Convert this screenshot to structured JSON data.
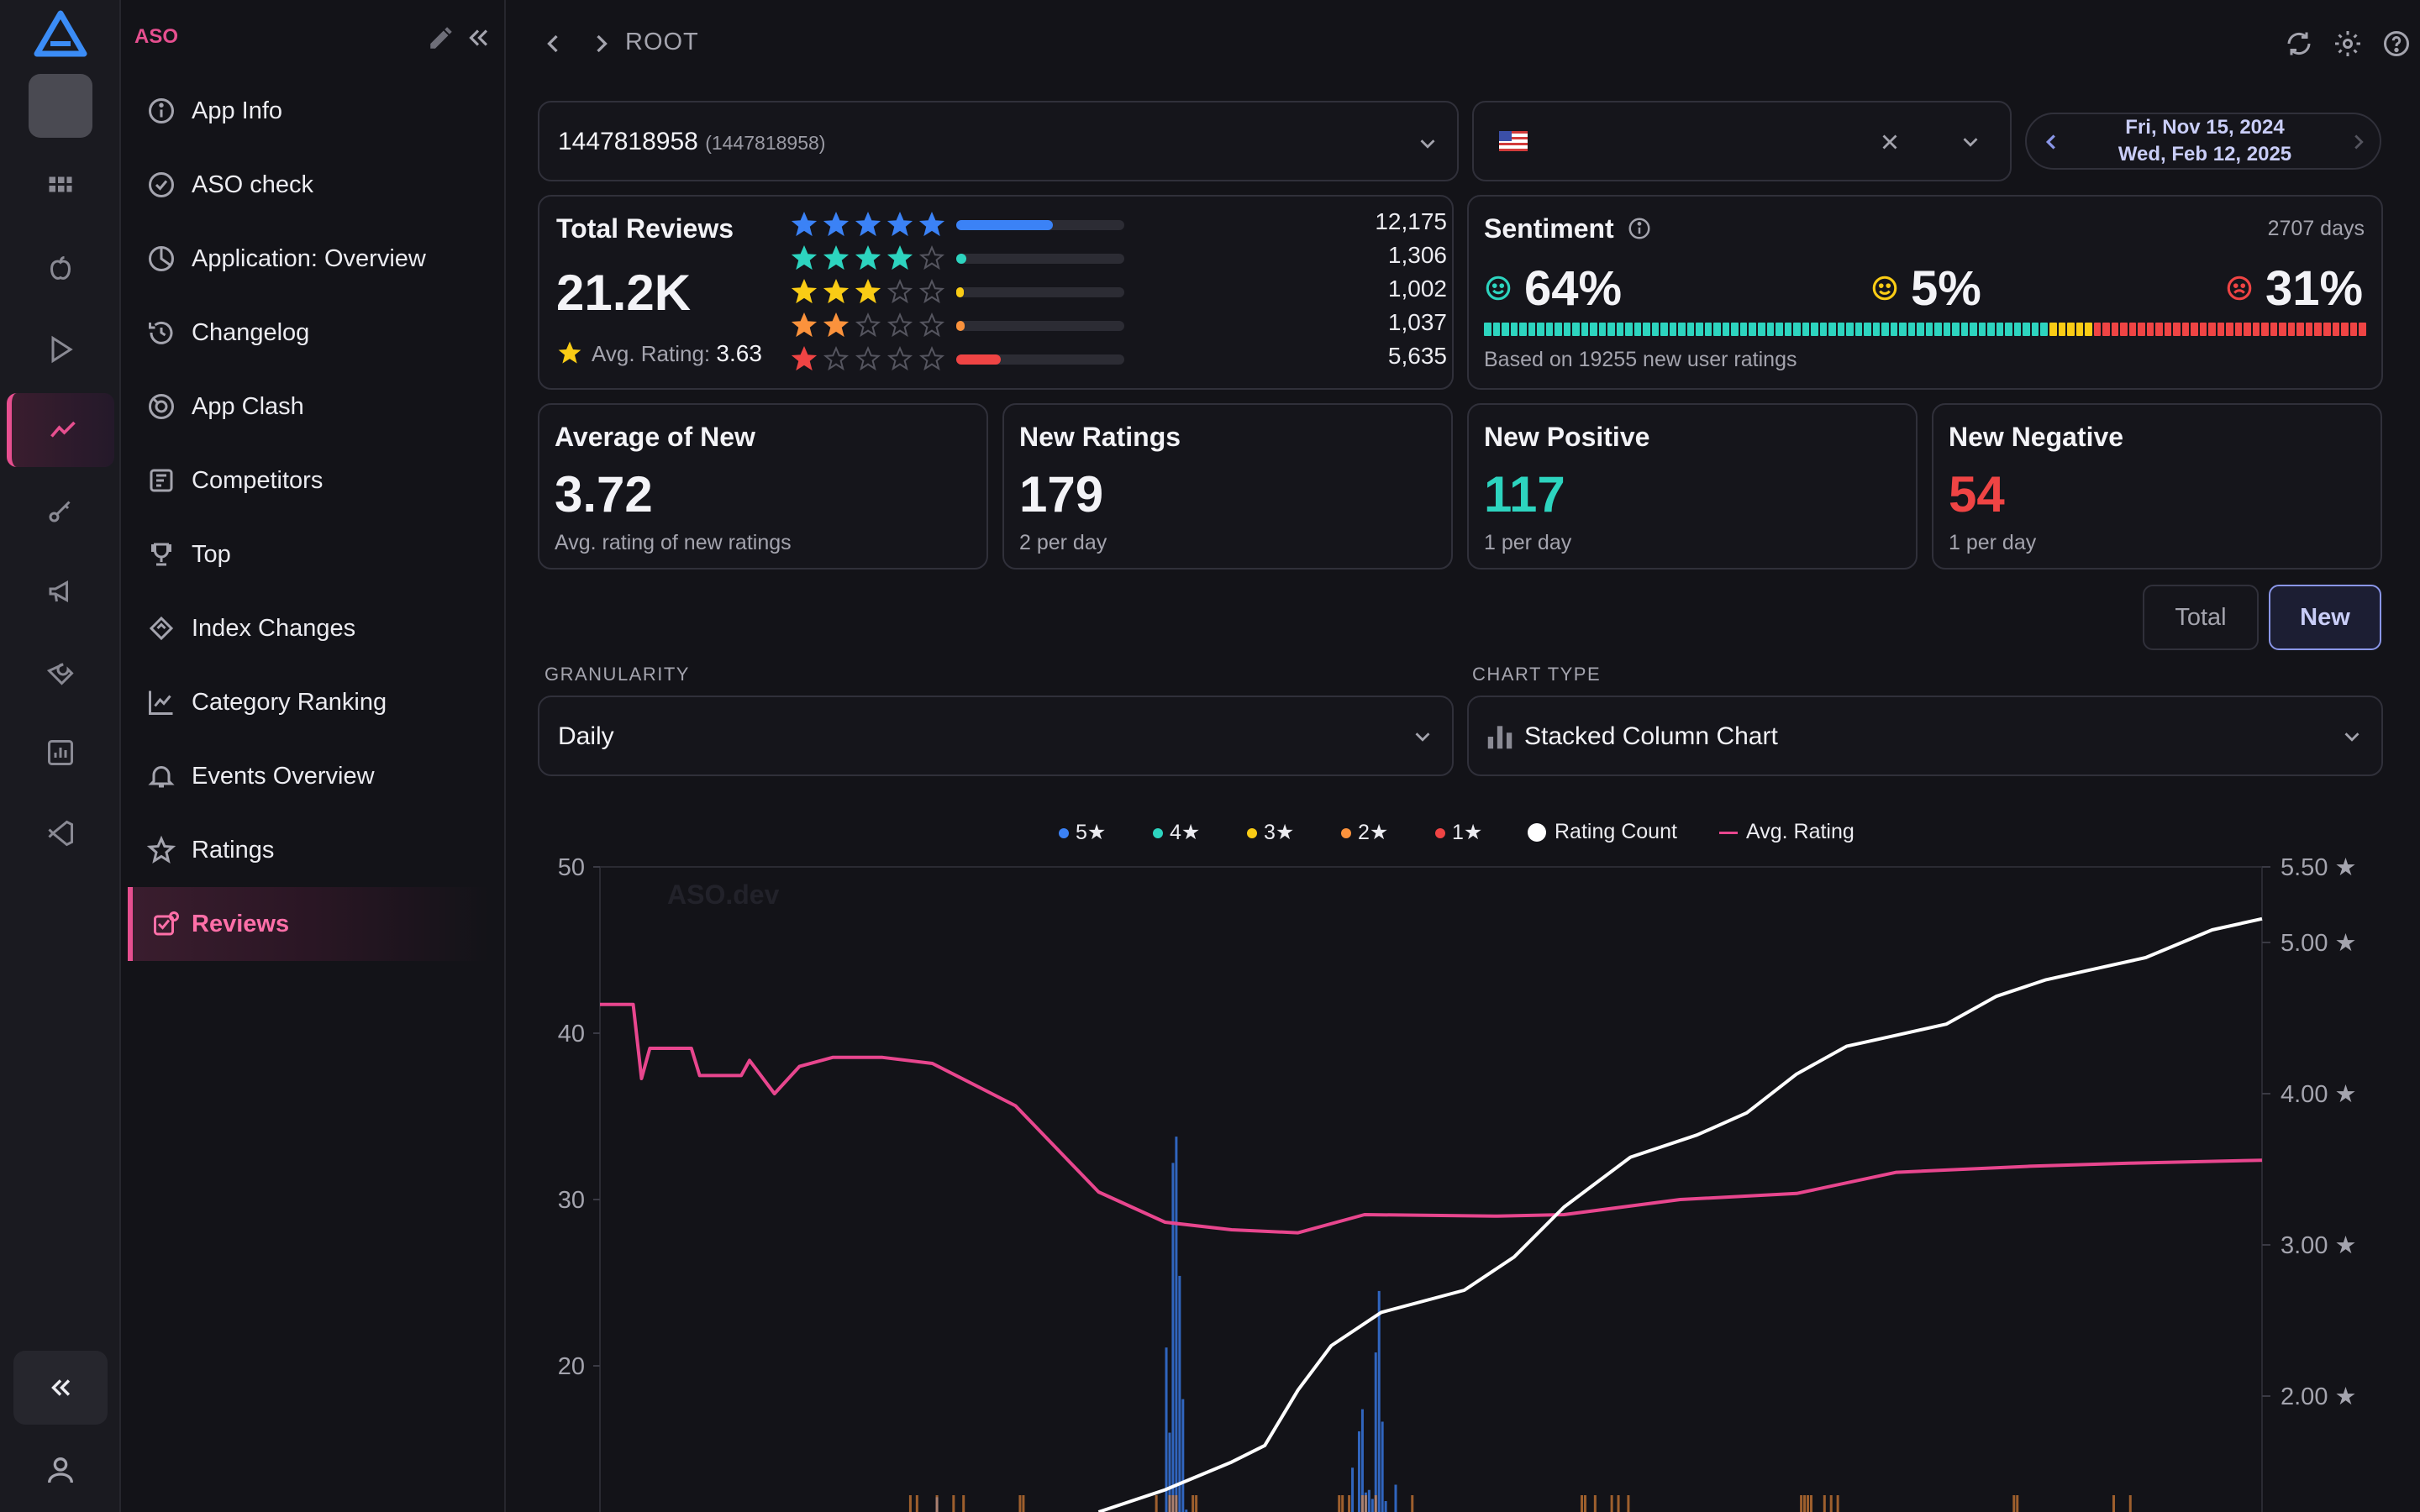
{
  "nav": {
    "brand": "ASO",
    "items": [
      {
        "label": "App Info",
        "icon": "info-icon"
      },
      {
        "label": "ASO check",
        "icon": "check-circle-icon"
      },
      {
        "label": "Application: Overview",
        "icon": "pie-icon"
      },
      {
        "label": "Changelog",
        "icon": "history-icon"
      },
      {
        "label": "App Clash",
        "icon": "versus-icon"
      },
      {
        "label": "Competitors",
        "icon": "competitors-icon"
      },
      {
        "label": "Top",
        "icon": "trophy-icon"
      },
      {
        "label": "Index Changes",
        "icon": "index-icon"
      },
      {
        "label": "Category Ranking",
        "icon": "line-chart-icon"
      },
      {
        "label": "Events Overview",
        "icon": "bell-icon"
      },
      {
        "label": "Ratings",
        "icon": "star-icon"
      },
      {
        "label": "Reviews",
        "icon": "reviews-icon",
        "active": true
      }
    ]
  },
  "topbar": {
    "breadcrumb": "ROOT"
  },
  "app_select": {
    "value": "1447818958",
    "sub": "(1447818958)"
  },
  "date_range": {
    "start": "Fri, Nov 15, 2024",
    "end": "Wed, Feb 12, 2025"
  },
  "reviews": {
    "title": "Total Reviews",
    "total": "21.2K",
    "avg_label": "Avg. Rating:",
    "avg_value": "3.63",
    "rows": [
      {
        "stars": 5,
        "count": "12,175",
        "share": 0.575,
        "color": "#3b82f6"
      },
      {
        "stars": 4,
        "count": "1,306",
        "share": 0.062,
        "color": "#2dd4bf"
      },
      {
        "stars": 3,
        "count": "1,002",
        "share": 0.047,
        "color": "#facc15"
      },
      {
        "stars": 2,
        "count": "1,037",
        "share": 0.049,
        "color": "#fb923c"
      },
      {
        "stars": 1,
        "count": "5,635",
        "share": 0.266,
        "color": "#ef4444"
      }
    ]
  },
  "sentiment": {
    "title": "Sentiment",
    "days": "2707 days",
    "positive": "64%",
    "neutral": "5%",
    "negative": "31%",
    "positive_share": 0.64,
    "neutral_share": 0.05,
    "negative_share": 0.31,
    "based_on": "Based on 19255 new user ratings",
    "colors": {
      "positive": "#2dd4bf",
      "neutral": "#facc15",
      "negative": "#ef4444"
    }
  },
  "stats": [
    {
      "title": "Average of New",
      "value": "3.72",
      "sub": "Avg. rating of new ratings",
      "color": "#f3f3f7"
    },
    {
      "title": "New Ratings",
      "value": "179",
      "sub": "2 per day",
      "color": "#f3f3f7"
    },
    {
      "title": "New Positive",
      "value": "117",
      "sub": "1 per day",
      "color": "#2dd4bf"
    },
    {
      "title": "New Negative",
      "value": "54",
      "sub": "1 per day",
      "color": "#ef4444"
    }
  ],
  "toggle": {
    "total": "Total",
    "new": "New",
    "selected": "New"
  },
  "granularity": {
    "label": "GRANULARITY",
    "value": "Daily"
  },
  "chart_type": {
    "label": "CHART TYPE",
    "value": "Stacked Column Chart"
  },
  "legend": [
    {
      "label": "5★",
      "color": "#3b82f6"
    },
    {
      "label": "4★",
      "color": "#2dd4bf"
    },
    {
      "label": "3★",
      "color": "#facc15"
    },
    {
      "label": "2★",
      "color": "#fb923c"
    },
    {
      "label": "1★",
      "color": "#ef4444"
    },
    {
      "label": "Rating Count",
      "color": "#ffffff"
    },
    {
      "label": "Avg. Rating",
      "color": "#e8468e"
    }
  ],
  "chart_data": {
    "type": "bar",
    "watermark": "ASO.dev",
    "y_left": {
      "ticks": [
        "50",
        "40",
        "30",
        "20"
      ],
      "values": [
        50,
        40,
        30,
        20
      ]
    },
    "y_right": {
      "ticks": [
        "5.50 ★",
        "5.00 ★",
        "4.00 ★",
        "3.00 ★",
        "2.00 ★"
      ],
      "values": [
        5.5,
        5.0,
        4.0,
        3.0,
        2.0
      ]
    },
    "series": [
      {
        "name": "Avg. Rating",
        "type": "line",
        "color": "#e8468e",
        "points": [
          [
            0,
            4.59
          ],
          [
            0.02,
            4.59
          ],
          [
            0.025,
            4.1
          ],
          [
            0.03,
            4.3
          ],
          [
            0.055,
            4.3
          ],
          [
            0.06,
            4.12
          ],
          [
            0.085,
            4.12
          ],
          [
            0.09,
            4.22
          ],
          [
            0.105,
            4.0
          ],
          [
            0.12,
            4.18
          ],
          [
            0.14,
            4.24
          ],
          [
            0.17,
            4.24
          ],
          [
            0.2,
            4.2
          ],
          [
            0.25,
            3.92
          ],
          [
            0.3,
            3.35
          ],
          [
            0.34,
            3.15
          ],
          [
            0.38,
            3.1
          ],
          [
            0.42,
            3.08
          ],
          [
            0.46,
            3.2
          ],
          [
            0.54,
            3.19
          ],
          [
            0.58,
            3.2
          ],
          [
            0.65,
            3.3
          ],
          [
            0.72,
            3.34
          ],
          [
            0.78,
            3.48
          ],
          [
            0.86,
            3.52
          ],
          [
            0.92,
            3.54
          ],
          [
            1.0,
            3.56
          ]
        ]
      },
      {
        "name": "Rating Count",
        "type": "line",
        "color": "#ffffff",
        "points": [
          [
            0.3,
            0.0
          ],
          [
            0.34,
            0.04
          ],
          [
            0.38,
            0.09
          ],
          [
            0.4,
            0.12
          ],
          [
            0.42,
            0.22
          ],
          [
            0.44,
            0.3
          ],
          [
            0.47,
            0.36
          ],
          [
            0.52,
            0.4
          ],
          [
            0.55,
            0.46
          ],
          [
            0.58,
            0.55
          ],
          [
            0.62,
            0.64
          ],
          [
            0.66,
            0.68
          ],
          [
            0.69,
            0.72
          ],
          [
            0.72,
            0.79
          ],
          [
            0.75,
            0.84
          ],
          [
            0.78,
            0.86
          ],
          [
            0.81,
            0.88
          ],
          [
            0.84,
            0.93
          ],
          [
            0.87,
            0.96
          ],
          [
            0.9,
            0.98
          ],
          [
            0.93,
            1.0
          ],
          [
            0.97,
            1.05
          ],
          [
            1.0,
            1.07
          ]
        ]
      },
      {
        "name": "5★",
        "type": "bar",
        "color": "#3b82f6",
        "clusters": [
          [
            0.18,
            0.22,
            14
          ],
          [
            0.25,
            0.27,
            11
          ],
          [
            0.33,
            0.36,
            38
          ],
          [
            0.44,
            0.49,
            31
          ],
          [
            0.59,
            0.62,
            18
          ],
          [
            0.72,
            0.75,
            14
          ],
          [
            0.84,
            0.86,
            10
          ],
          [
            0.9,
            0.93,
            7
          ]
        ]
      }
    ]
  }
}
